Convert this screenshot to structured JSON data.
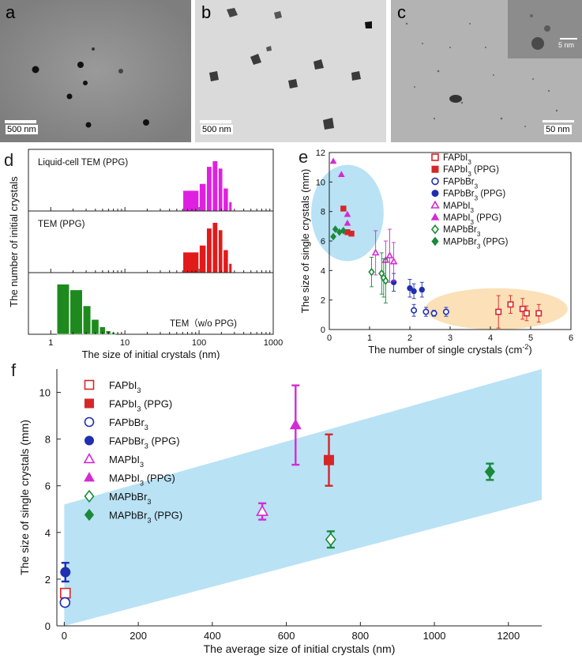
{
  "panels": {
    "a": {
      "letter": "a",
      "scale": "500 nm"
    },
    "b": {
      "letter": "b",
      "scale": "500 nm"
    },
    "c": {
      "letter": "c",
      "scale": "50 nm",
      "inset_scale": "5 nm"
    },
    "d": {
      "letter": "d"
    },
    "e": {
      "letter": "e"
    },
    "f": {
      "letter": "f"
    }
  },
  "colors": {
    "fapbi": "#d62728",
    "fapbbr": "#1f2fb0",
    "mapbi": "#d42ad4",
    "mapbbr": "#1a8a3a",
    "shade_blue": "#b9e2f5",
    "shade_orange": "#fbe0b8"
  },
  "chart_data": [
    {
      "type": "bar",
      "id": "d",
      "xlabel": "The size of initial crystals (nm)",
      "ylabel": "The number of initial crystals",
      "xscale": "log",
      "xlim": [
        0.5,
        1000
      ],
      "xticks": [
        "1",
        "10",
        "100",
        "1000"
      ],
      "xtick_values": [
        1,
        10,
        100,
        1000
      ],
      "subplots": [
        {
          "label": "Liquid-cell TEM (PPG)",
          "color": "#e020e0",
          "bins": [
            [
              60,
              100,
              0.36
            ],
            [
              100,
              125,
              0.48
            ],
            [
              125,
              150,
              0.78
            ],
            [
              150,
              180,
              0.88
            ],
            [
              180,
              210,
              0.75
            ],
            [
              210,
              250,
              0.4
            ],
            [
              250,
              280,
              0.16
            ]
          ]
        },
        {
          "label": "TEM (PPG)",
          "color": "#e31a1a",
          "bins": [
            [
              60,
              100,
              0.36
            ],
            [
              100,
              125,
              0.48
            ],
            [
              125,
              150,
              0.78
            ],
            [
              150,
              180,
              0.88
            ],
            [
              180,
              210,
              0.75
            ],
            [
              210,
              250,
              0.4
            ],
            [
              250,
              280,
              0.16
            ]
          ]
        },
        {
          "label": "TEM（w/o PPG)",
          "color": "#1e8a1e",
          "bins": [
            [
              1.2,
              1.8,
              0.88
            ],
            [
              1.8,
              2.7,
              0.78
            ],
            [
              2.7,
              3.5,
              0.5
            ],
            [
              3.5,
              4.5,
              0.26
            ],
            [
              4.5,
              5.5,
              0.13
            ],
            [
              5.5,
              6.5,
              0.06
            ],
            [
              6.5,
              7.5,
              0.03
            ]
          ]
        }
      ]
    },
    {
      "type": "scatter",
      "id": "e",
      "xlabel": "The number of single crystals (cm⁻²)",
      "ylabel": "The size of single crystals (mm)",
      "xlim": [
        0,
        6
      ],
      "ylim": [
        0,
        12
      ],
      "xticks": [
        0,
        1,
        2,
        3,
        4,
        5,
        6
      ],
      "yticks": [
        0,
        2,
        4,
        6,
        8,
        10,
        12
      ],
      "series": [
        {
          "name": "FAPbI₃",
          "marker": "square-open",
          "color": "#d62728",
          "points": [
            [
              4.2,
              1.2,
              1.1
            ],
            [
              4.5,
              1.7,
              0.6
            ],
            [
              4.8,
              1.4,
              0.7
            ],
            [
              4.9,
              1.1,
              0.5
            ],
            [
              5.2,
              1.1,
              0.6
            ]
          ]
        },
        {
          "name": "FAPbI₃ (PPG)",
          "marker": "square",
          "color": "#d62728",
          "points": [
            [
              0.35,
              8.2,
              0
            ],
            [
              0.45,
              6.6,
              0
            ],
            [
              0.55,
              6.5,
              0
            ]
          ]
        },
        {
          "name": "FAPbBr₃",
          "marker": "circle-open",
          "color": "#1f2fb0",
          "points": [
            [
              2.1,
              1.3,
              0.4
            ],
            [
              2.4,
              1.2,
              0.3
            ],
            [
              2.6,
              1.1,
              0.2
            ],
            [
              2.9,
              1.2,
              0.3
            ]
          ]
        },
        {
          "name": "FAPbBr₃ (PPG)",
          "marker": "circle",
          "color": "#1f2fb0",
          "points": [
            [
              1.6,
              3.2,
              0.6
            ],
            [
              2.0,
              2.8,
              0.6
            ],
            [
              2.1,
              2.6,
              0.5
            ],
            [
              2.3,
              2.7,
              0.5
            ]
          ]
        },
        {
          "name": "MAPbI₃",
          "marker": "triangle-open",
          "color": "#d42ad4",
          "points": [
            [
              1.15,
              5.2,
              1.5
            ],
            [
              1.4,
              4.7,
              1.3
            ],
            [
              1.5,
              5.0,
              1.8
            ],
            [
              1.6,
              4.6,
              1.3
            ]
          ]
        },
        {
          "name": "MAPbI₃ (PPG)",
          "marker": "triangle",
          "color": "#d42ad4",
          "points": [
            [
              0.1,
              11.4,
              0
            ],
            [
              0.3,
              10.5,
              0
            ],
            [
              0.45,
              7.8,
              0
            ],
            [
              0.45,
              7.2,
              0
            ]
          ]
        },
        {
          "name": "MAPbBr₃",
          "marker": "diamond-open",
          "color": "#1a8a3a",
          "points": [
            [
              1.05,
              3.9,
              1.0
            ],
            [
              1.3,
              3.8,
              1.4
            ],
            [
              1.35,
              3.5,
              1.3
            ],
            [
              1.4,
              3.3,
              1.5
            ]
          ]
        },
        {
          "name": "MAPbBr₃ (PPG)",
          "marker": "diamond",
          "color": "#1a8a3a",
          "points": [
            [
              0.1,
              6.3,
              0
            ],
            [
              0.15,
              6.8,
              0
            ],
            [
              0.25,
              6.6,
              0
            ],
            [
              0.35,
              6.7,
              0
            ]
          ]
        }
      ]
    },
    {
      "type": "scatter",
      "id": "f",
      "xlabel": "The average size of initial crystals  (nm)",
      "ylabel": "The size of single crystals  (mm)",
      "xlim": [
        -20,
        1290
      ],
      "ylim": [
        0,
        11
      ],
      "xticks": [
        0,
        200,
        400,
        600,
        800,
        1000,
        1200
      ],
      "yticks": [
        0,
        2,
        4,
        6,
        8,
        10
      ],
      "band": {
        "lower": [
          [
            0,
            0
          ],
          [
            1290,
            5.4
          ]
        ],
        "upper": [
          [
            0,
            5.2
          ],
          [
            1290,
            11
          ]
        ]
      },
      "series": [
        {
          "name": "FAPbI₃",
          "marker": "square-open",
          "color": "#d62728",
          "points": [
            [
              3,
              1.4,
              0.1
            ]
          ]
        },
        {
          "name": "FAPbI₃ (PPG)",
          "marker": "square",
          "color": "#d62728",
          "points": [
            [
              715,
              7.1,
              1.1
            ]
          ]
        },
        {
          "name": "FAPbBr₃",
          "marker": "circle-open",
          "color": "#1f2fb0",
          "points": [
            [
              2,
              1.0,
              0.1
            ]
          ]
        },
        {
          "name": "FAPbBr₃ (PPG)",
          "marker": "circle",
          "color": "#1f2fb0",
          "points": [
            [
              3,
              2.3,
              0.4
            ]
          ]
        },
        {
          "name": "MAPbI₃",
          "marker": "triangle-open",
          "color": "#d42ad4",
          "points": [
            [
              535,
              4.9,
              0.35
            ]
          ]
        },
        {
          "name": "MAPbI₃ (PPG)",
          "marker": "triangle",
          "color": "#d42ad4",
          "points": [
            [
              625,
              8.6,
              1.7
            ]
          ]
        },
        {
          "name": "MAPbBr₃",
          "marker": "diamond-open",
          "color": "#1a8a3a",
          "points": [
            [
              720,
              3.7,
              0.35
            ]
          ]
        },
        {
          "name": "MAPbBr₃ (PPG)",
          "marker": "diamond",
          "color": "#1a8a3a",
          "points": [
            [
              1150,
              6.6,
              0.35
            ]
          ]
        }
      ]
    }
  ]
}
